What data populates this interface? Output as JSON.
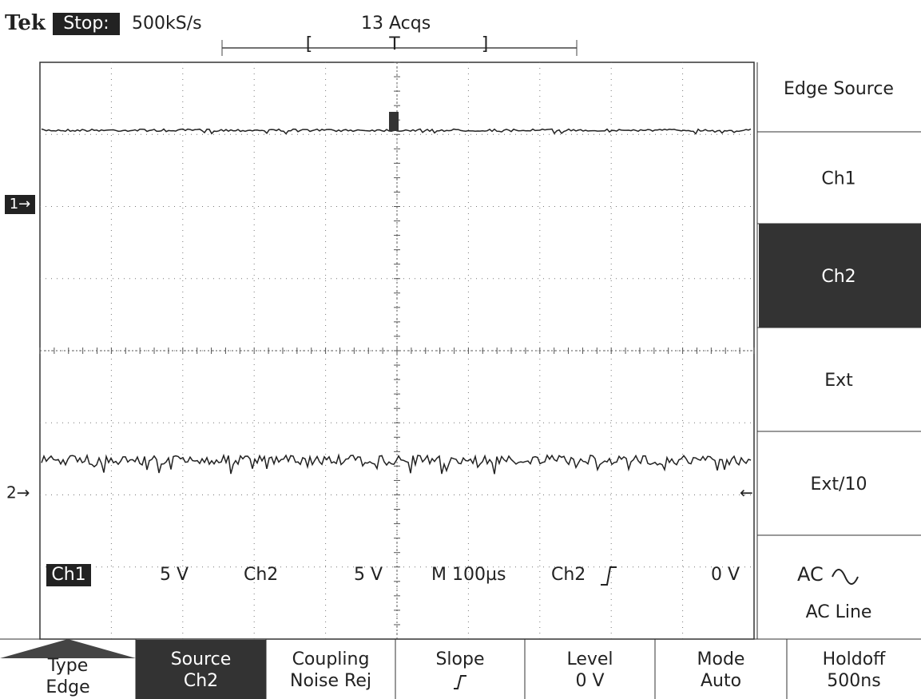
{
  "header": {
    "brand": "Tek",
    "status": "Stop:",
    "sample_rate": "500kS/s",
    "acquisitions": "13 Acqs",
    "bracket_left": "[",
    "trigger_marker": "T",
    "bracket_right": "]"
  },
  "channel_markers": {
    "ch1": "1→",
    "ch2": "2→",
    "trigger_level": "←"
  },
  "status_bar": {
    "ch1_label": "Ch1",
    "ch1_scale": "5 V",
    "ch2_label": "Ch2",
    "ch2_scale": "5 V",
    "timebase": "M 100µs",
    "trigger_source": "Ch2",
    "trigger_level": "0 V"
  },
  "side_menu": {
    "title": "Edge Source",
    "options": [
      "Ch1",
      "Ch2",
      "Ext",
      "Ext/10"
    ],
    "selected": "Ch2",
    "ac": "AC",
    "ac_line": "AC Line"
  },
  "bottom_menu": [
    {
      "label": "Type",
      "value": "Edge"
    },
    {
      "label": "Source",
      "value": "Ch2"
    },
    {
      "label": "Coupling",
      "value": "Noise Rej"
    },
    {
      "label": "Slope",
      "value": null
    },
    {
      "label": "Level",
      "value": "0 V"
    },
    {
      "label": "Mode",
      "value": "Auto"
    },
    {
      "label": "Holdoff",
      "value": "500ns"
    }
  ]
}
